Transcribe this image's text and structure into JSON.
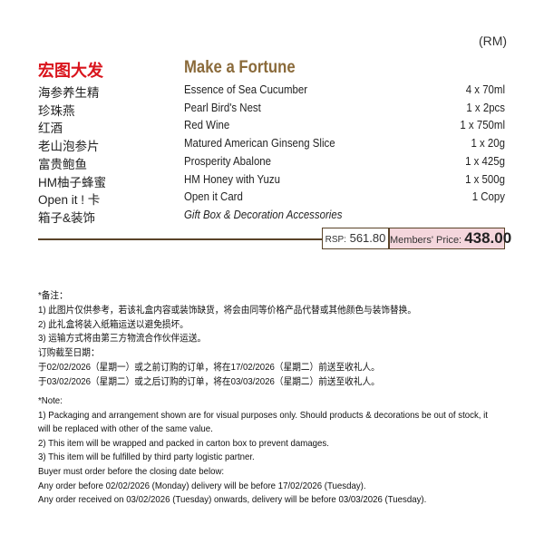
{
  "header": {
    "currency": "(RM)",
    "title_zh": "宏图大发",
    "title_en": "Make a Fortune"
  },
  "items": [
    {
      "zh": "海参养生精",
      "en": "Essence of Sea Cucumber",
      "qty": "4 x 70ml"
    },
    {
      "zh": "珍珠燕",
      "en": "Pearl Bird's Nest",
      "qty": "1 x 2pcs"
    },
    {
      "zh": "红酒",
      "en": "Red Wine",
      "qty": "1 x 750ml"
    },
    {
      "zh": "老山泡参片",
      "en": "Matured American Ginseng Slice",
      "qty": "1 x 20g"
    },
    {
      "zh": "富贵鲍鱼",
      "en": "Prosperity Abalone",
      "qty": "1 x 425g"
    },
    {
      "zh": "HM柚子蜂蜜",
      "en": "HM Honey with Yuzu",
      "qty": "1 x 500g"
    },
    {
      "zh": "Open it ! 卡",
      "en": "Open it Card",
      "qty": "1 Copy"
    },
    {
      "zh": "箱子&装饰",
      "en": "Gift Box & Decoration Accessories"
    }
  ],
  "price": {
    "rsp_label": "RSP:",
    "rsp": "561.80",
    "member_label": "Members' Price:",
    "member": "438.00"
  },
  "notes_zh": [
    "*备注：",
    "1) 此图片仅供参考，若该礼盒内容或装饰缺货，将会由同等价格产品代替或其他颜色与装饰替换。",
    "2) 此礼盒将装入纸箱运送以避免损坏。",
    "3) 运输方式将由第三方物流合作伙伴运送。",
    "订购截至日期：",
    "于02/02/2026（星期一）或之前订购的订单，将在17/02/2026（星期二）前送至收礼人。",
    "于03/02/2026（星期二）或之后订购的订单，将在03/03/2026（星期二）前送至收礼人。"
  ],
  "notes_en": [
    "*Note:",
    "1) Packaging and arrangement shown are for visual purposes only. Should products & decorations be out of stock, it",
    "will be replaced with other of the same value.",
    "2) This item will be wrapped and packed in carton box to prevent damages.",
    "3) This item will be fulfilled by third party logistic partner.",
    "Buyer must order before the closing date below:",
    "Any order before 02/02/2026 (Monday) delivery will be before 17/02/2026 (Tuesday).",
    "Any order received on 03/02/2026 (Tuesday) onwards, delivery will be before 03/03/2026 (Tuesday)."
  ]
}
